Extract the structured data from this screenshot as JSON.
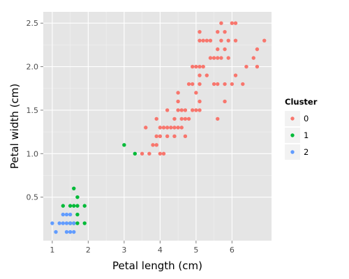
{
  "chart_data": {
    "type": "scatter",
    "title": "",
    "xlabel": "Petal length (cm)",
    "ylabel": "Petal width (cm)",
    "xlim": [
      0.75,
      7.1
    ],
    "ylim": [
      0.0,
      2.63
    ],
    "xticks": [
      1,
      2,
      3,
      4,
      5,
      6
    ],
    "xtick_labels": [
      "1",
      "2",
      "3",
      "4",
      "5",
      "6"
    ],
    "yticks": [
      0.5,
      1.0,
      1.5,
      2.0,
      2.5
    ],
    "ytick_labels": [
      "0.5",
      "1.0",
      "1.5",
      "2.0",
      "2.5"
    ],
    "grid": true,
    "legend": {
      "title": "Cluster",
      "placement": "right"
    },
    "series": [
      {
        "name": "0",
        "color": "#F8766D",
        "points": [
          [
            3.5,
            1.0
          ],
          [
            3.6,
            1.3
          ],
          [
            3.7,
            1.0
          ],
          [
            3.8,
            1.1
          ],
          [
            3.9,
            1.1
          ],
          [
            3.9,
            1.2
          ],
          [
            3.9,
            1.4
          ],
          [
            4.0,
            1.0
          ],
          [
            4.0,
            1.2
          ],
          [
            4.0,
            1.3
          ],
          [
            4.1,
            1.0
          ],
          [
            4.1,
            1.3
          ],
          [
            4.2,
            1.2
          ],
          [
            4.2,
            1.3
          ],
          [
            4.2,
            1.5
          ],
          [
            4.3,
            1.3
          ],
          [
            4.4,
            1.2
          ],
          [
            4.4,
            1.3
          ],
          [
            4.4,
            1.4
          ],
          [
            4.5,
            1.3
          ],
          [
            4.5,
            1.5
          ],
          [
            4.5,
            1.6
          ],
          [
            4.5,
            1.7
          ],
          [
            4.6,
            1.3
          ],
          [
            4.6,
            1.4
          ],
          [
            4.6,
            1.5
          ],
          [
            4.7,
            1.2
          ],
          [
            4.7,
            1.4
          ],
          [
            4.7,
            1.5
          ],
          [
            4.8,
            1.4
          ],
          [
            4.8,
            1.8
          ],
          [
            4.9,
            1.5
          ],
          [
            4.9,
            1.8
          ],
          [
            4.9,
            2.0
          ],
          [
            5.0,
            1.5
          ],
          [
            5.0,
            1.7
          ],
          [
            5.0,
            2.0
          ],
          [
            5.1,
            1.5
          ],
          [
            5.1,
            1.6
          ],
          [
            5.1,
            1.8
          ],
          [
            5.1,
            1.9
          ],
          [
            5.1,
            2.0
          ],
          [
            5.1,
            2.3
          ],
          [
            5.1,
            2.4
          ],
          [
            5.2,
            2.0
          ],
          [
            5.2,
            2.3
          ],
          [
            5.3,
            1.9
          ],
          [
            5.3,
            2.3
          ],
          [
            5.4,
            2.1
          ],
          [
            5.4,
            2.3
          ],
          [
            5.5,
            1.8
          ],
          [
            5.5,
            2.1
          ],
          [
            5.6,
            1.4
          ],
          [
            5.6,
            1.8
          ],
          [
            5.6,
            2.1
          ],
          [
            5.6,
            2.2
          ],
          [
            5.6,
            2.4
          ],
          [
            5.7,
            2.1
          ],
          [
            5.7,
            2.3
          ],
          [
            5.7,
            2.5
          ],
          [
            5.8,
            1.6
          ],
          [
            5.8,
            1.8
          ],
          [
            5.8,
            2.2
          ],
          [
            5.8,
            2.4
          ],
          [
            5.9,
            2.1
          ],
          [
            5.9,
            2.3
          ],
          [
            6.0,
            1.8
          ],
          [
            6.0,
            2.5
          ],
          [
            6.1,
            1.9
          ],
          [
            6.1,
            2.3
          ],
          [
            6.1,
            2.5
          ],
          [
            6.3,
            1.8
          ],
          [
            6.4,
            2.0
          ],
          [
            6.6,
            2.1
          ],
          [
            6.7,
            2.0
          ],
          [
            6.7,
            2.2
          ],
          [
            6.9,
            2.3
          ]
        ]
      },
      {
        "name": "1",
        "color": "#00BA38",
        "points": [
          [
            1.3,
            0.4
          ],
          [
            1.5,
            0.2
          ],
          [
            1.5,
            0.4
          ],
          [
            1.6,
            0.2
          ],
          [
            1.6,
            0.4
          ],
          [
            1.6,
            0.6
          ],
          [
            1.7,
            0.2
          ],
          [
            1.7,
            0.3
          ],
          [
            1.7,
            0.4
          ],
          [
            1.7,
            0.5
          ],
          [
            1.9,
            0.2
          ],
          [
            1.9,
            0.4
          ],
          [
            3.0,
            1.1
          ],
          [
            3.3,
            1.0
          ]
        ]
      },
      {
        "name": "2",
        "color": "#619CFF",
        "points": [
          [
            1.0,
            0.2
          ],
          [
            1.1,
            0.1
          ],
          [
            1.2,
            0.2
          ],
          [
            1.3,
            0.2
          ],
          [
            1.3,
            0.3
          ],
          [
            1.4,
            0.1
          ],
          [
            1.4,
            0.2
          ],
          [
            1.4,
            0.3
          ],
          [
            1.5,
            0.1
          ],
          [
            1.5,
            0.2
          ],
          [
            1.5,
            0.3
          ],
          [
            1.6,
            0.1
          ],
          [
            1.6,
            0.2
          ]
        ]
      }
    ]
  }
}
